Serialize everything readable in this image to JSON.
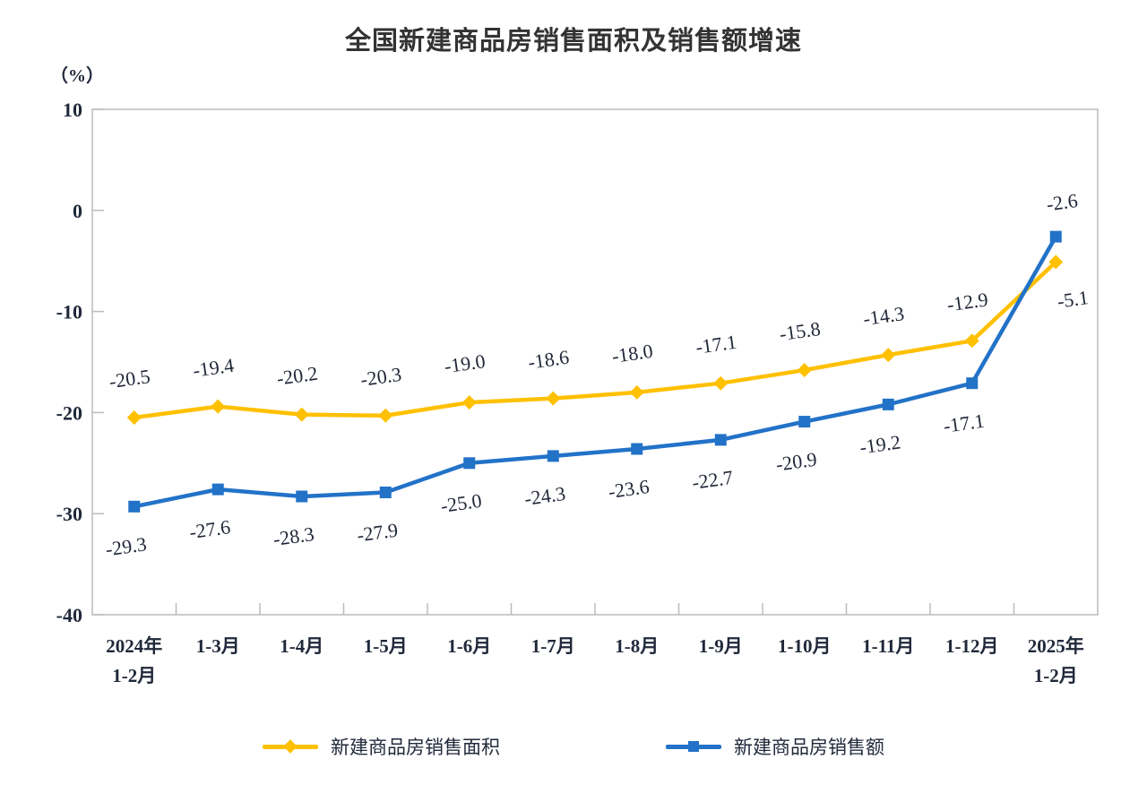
{
  "title": "全国新建商品房销售面积及销售额增速",
  "unit_label": "（%）",
  "colors": {
    "area_series": "#FFC000",
    "value_series": "#2272C8",
    "axis": "#BBBBBB",
    "axis_text": "#20293a",
    "data_label_text": "#1f2637",
    "title_text": "#333333",
    "background": "#FFFFFF"
  },
  "chart_data": {
    "type": "line",
    "title": "全国新建商品房销售面积及销售额增速",
    "unit": "（%）",
    "xlabel": "",
    "ylabel": "（%）",
    "ylim": [
      -40,
      10
    ],
    "yticks": [
      10,
      0,
      -10,
      -20,
      -30,
      -40
    ],
    "grid": false,
    "legend_position": "bottom",
    "categories": [
      "2024年\n1-2月",
      "1-3月",
      "1-4月",
      "1-5月",
      "1-6月",
      "1-7月",
      "1-8月",
      "1-9月",
      "1-10月",
      "1-11月",
      "1-12月",
      "2025年\n1-2月"
    ],
    "series": [
      {
        "name": "新建商品房销售面积",
        "color": "#FFC000",
        "marker": "diamond",
        "values": [
          -20.5,
          -19.4,
          -20.2,
          -20.3,
          -19.0,
          -18.6,
          -18.0,
          -17.1,
          -15.8,
          -14.3,
          -12.9,
          -5.1
        ],
        "labels": [
          "-20.5",
          "-19.4",
          "-20.2",
          "-20.3",
          "-19.0",
          "-18.6",
          "-18.0",
          "-17.1",
          "-15.8",
          "-14.3",
          "-12.9",
          "-5.1"
        ],
        "label_offset": {
          "dx": -4,
          "dy": -36
        },
        "label_overrides": {
          "11": {
            "dx": 20,
            "dy": 49
          }
        }
      },
      {
        "name": "新建商品房销售额",
        "color": "#2272C8",
        "marker": "square",
        "values": [
          -29.3,
          -27.6,
          -28.3,
          -27.9,
          -25.0,
          -24.3,
          -23.6,
          -22.7,
          -20.9,
          -19.2,
          -17.1,
          -2.6
        ],
        "labels": [
          "-29.3",
          "-27.6",
          "-28.3",
          "-27.9",
          "-25.0",
          "-24.3",
          "-23.6",
          "-22.7",
          "-20.9",
          "-19.2",
          "-17.1",
          "-2.6"
        ],
        "label_offset": {
          "dx": -8,
          "dy": 52
        },
        "label_overrides": {
          "11": {
            "dx": 8,
            "dy": -31
          }
        }
      }
    ]
  }
}
